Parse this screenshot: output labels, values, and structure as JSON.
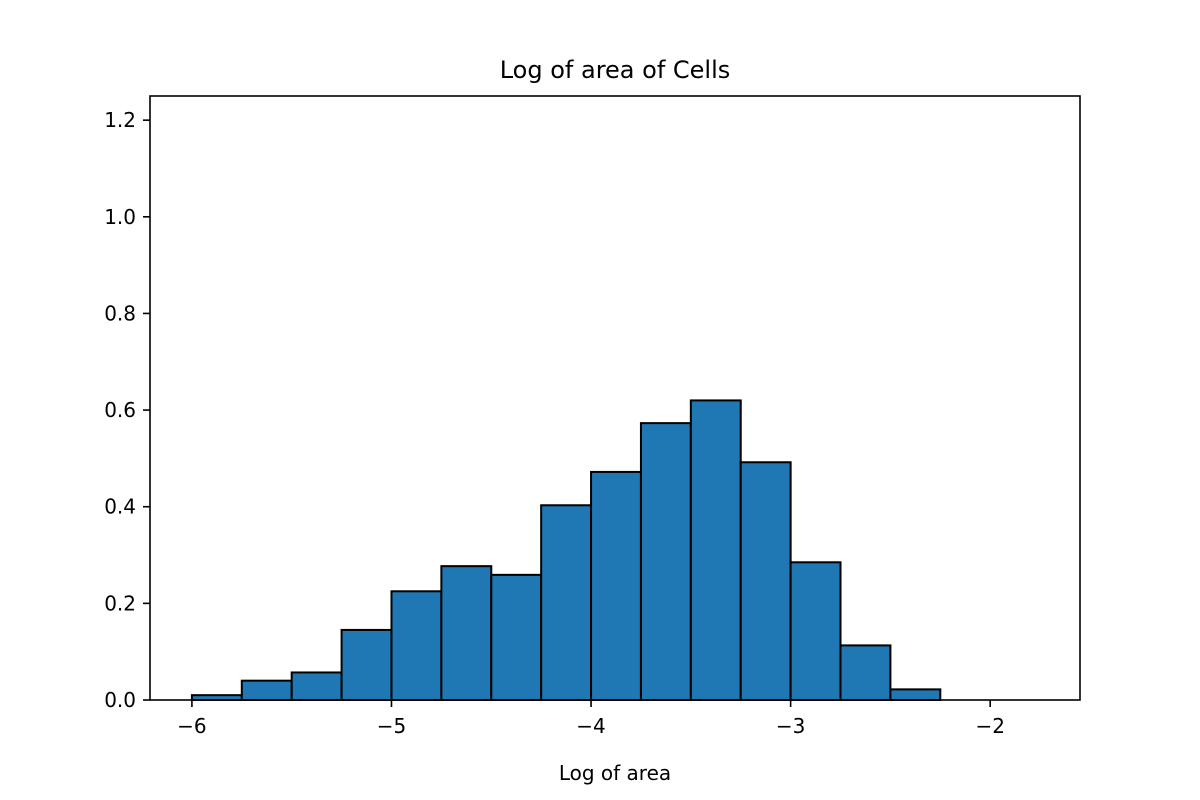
{
  "chart_data": {
    "type": "bar",
    "title": "Log of area of Cells",
    "xlabel": "Log of area",
    "ylabel": "",
    "xlim": [
      -6.21,
      -1.55
    ],
    "ylim": [
      0.0,
      1.25
    ],
    "grid": false,
    "x_ticks": [
      {
        "value": -6,
        "label": "−6"
      },
      {
        "value": -5,
        "label": "−5"
      },
      {
        "value": -4,
        "label": "−4"
      },
      {
        "value": -3,
        "label": "−3"
      },
      {
        "value": -2,
        "label": "−2"
      }
    ],
    "y_ticks": [
      {
        "value": 0.0,
        "label": "0.0"
      },
      {
        "value": 0.2,
        "label": "0.2"
      },
      {
        "value": 0.4,
        "label": "0.4"
      },
      {
        "value": 0.6,
        "label": "0.6"
      },
      {
        "value": 0.8,
        "label": "0.8"
      },
      {
        "value": 1.0,
        "label": "1.0"
      },
      {
        "value": 1.2,
        "label": "1.2"
      }
    ],
    "bin_edges": [
      -6.0,
      -5.75,
      -5.5,
      -5.25,
      -5.0,
      -4.75,
      -4.5,
      -4.25,
      -4.0,
      -3.75,
      -3.5,
      -3.25,
      -3.0,
      -2.75,
      -2.5,
      -2.25
    ],
    "values": [
      0.01,
      0.04,
      0.057,
      0.145,
      0.225,
      0.277,
      0.259,
      0.403,
      0.472,
      0.573,
      0.62,
      0.492,
      0.285,
      0.113,
      0.022
    ],
    "bar_color": "#1f77b4",
    "edge_color": "#000000"
  }
}
